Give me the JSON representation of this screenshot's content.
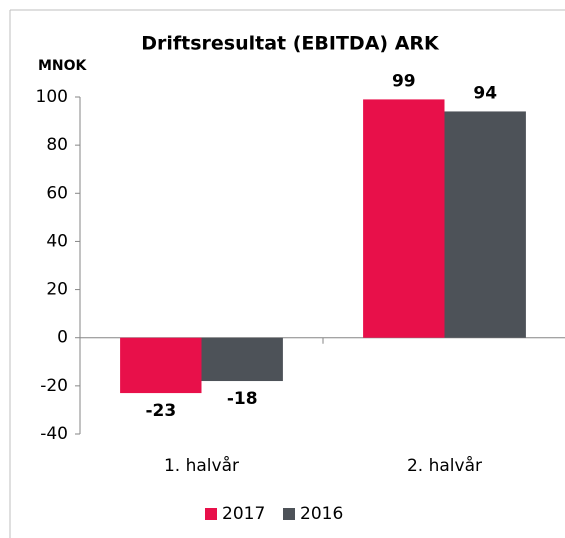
{
  "chart_data": {
    "type": "bar",
    "title": "Driftsresultat (EBITDA) ARK",
    "y_label": "MNOK",
    "categories": [
      "1. halvår",
      "2. halvår"
    ],
    "series": [
      {
        "name": "2017",
        "color": "#e8104a",
        "values": [
          -23,
          99
        ]
      },
      {
        "name": "2016",
        "color": "#4d5258",
        "values": [
          -18,
          94
        ]
      }
    ],
    "ylim": [
      -40,
      100
    ],
    "yticks": [
      -40,
      -20,
      0,
      20,
      40,
      60,
      80,
      100
    ],
    "grid": false,
    "legend": "bottom",
    "data_labels": true
  }
}
